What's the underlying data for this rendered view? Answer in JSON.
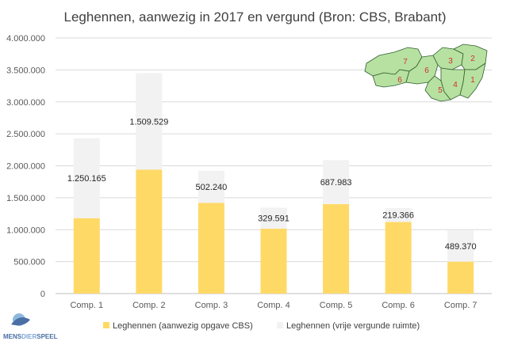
{
  "chart_data": {
    "type": "bar",
    "stacked": true,
    "title": "Leghennen, aanwezig in 2017 en vergund (Bron: CBS, Brabant)",
    "categories": [
      "Comp. 1",
      "Comp. 2",
      "Comp. 3",
      "Comp. 4",
      "Comp. 5",
      "Comp. 6",
      "Comp. 7"
    ],
    "series": [
      {
        "name": "Leghennen (aanwezig opgave CBS)",
        "color": "#ffd966",
        "values": [
          1180000,
          1940000,
          1420000,
          1015000,
          1400000,
          1120000,
          500000
        ]
      },
      {
        "name": "Leghennen (vrije vergunde ruimte)",
        "color": "#f2f2f2",
        "values": [
          1250165,
          1509529,
          502240,
          329591,
          687983,
          219366,
          489370
        ]
      }
    ],
    "data_labels": [
      "1.250.165",
      "1.509.529",
      "502.240",
      "329.591",
      "687.983",
      "219.366",
      "489.370"
    ],
    "y_ticks": [
      "0",
      "500.000",
      "1.000.000",
      "1.500.000",
      "2.000.000",
      "2.500.000",
      "3.000.000",
      "3.500.000",
      "4.000.000"
    ],
    "ylim": [
      0,
      4000000
    ],
    "grid": true,
    "legend_position": "bottom"
  },
  "map": {
    "region_numbers": [
      "1",
      "2",
      "3",
      "4",
      "5",
      "6",
      "7"
    ],
    "fill_color": "#b7e1a1",
    "number_color": "#d32f2f"
  },
  "logo": {
    "text_left": "MENS",
    "text_mid": "DIER",
    "text_right": "SPEEL"
  }
}
